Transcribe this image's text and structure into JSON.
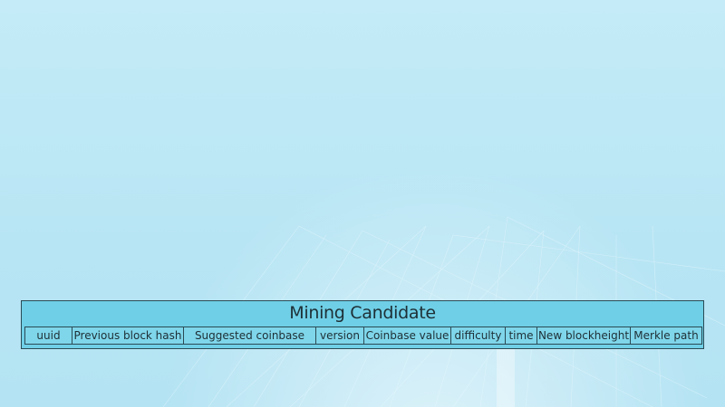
{
  "diagram": {
    "title": "Mining Candidate",
    "columns": [
      {
        "label": "uuid"
      },
      {
        "label": "Previous block hash"
      },
      {
        "label": "Suggested coinbase"
      },
      {
        "label": "version"
      },
      {
        "label": "Coinbase value"
      },
      {
        "label": "difficulty"
      },
      {
        "label": "time"
      },
      {
        "label": "New blockheight"
      },
      {
        "label": "Merkle path"
      }
    ]
  },
  "colors": {
    "box_fill": "#6fcfe6",
    "border": "#2a4a55",
    "background": "#bfe9f6"
  }
}
